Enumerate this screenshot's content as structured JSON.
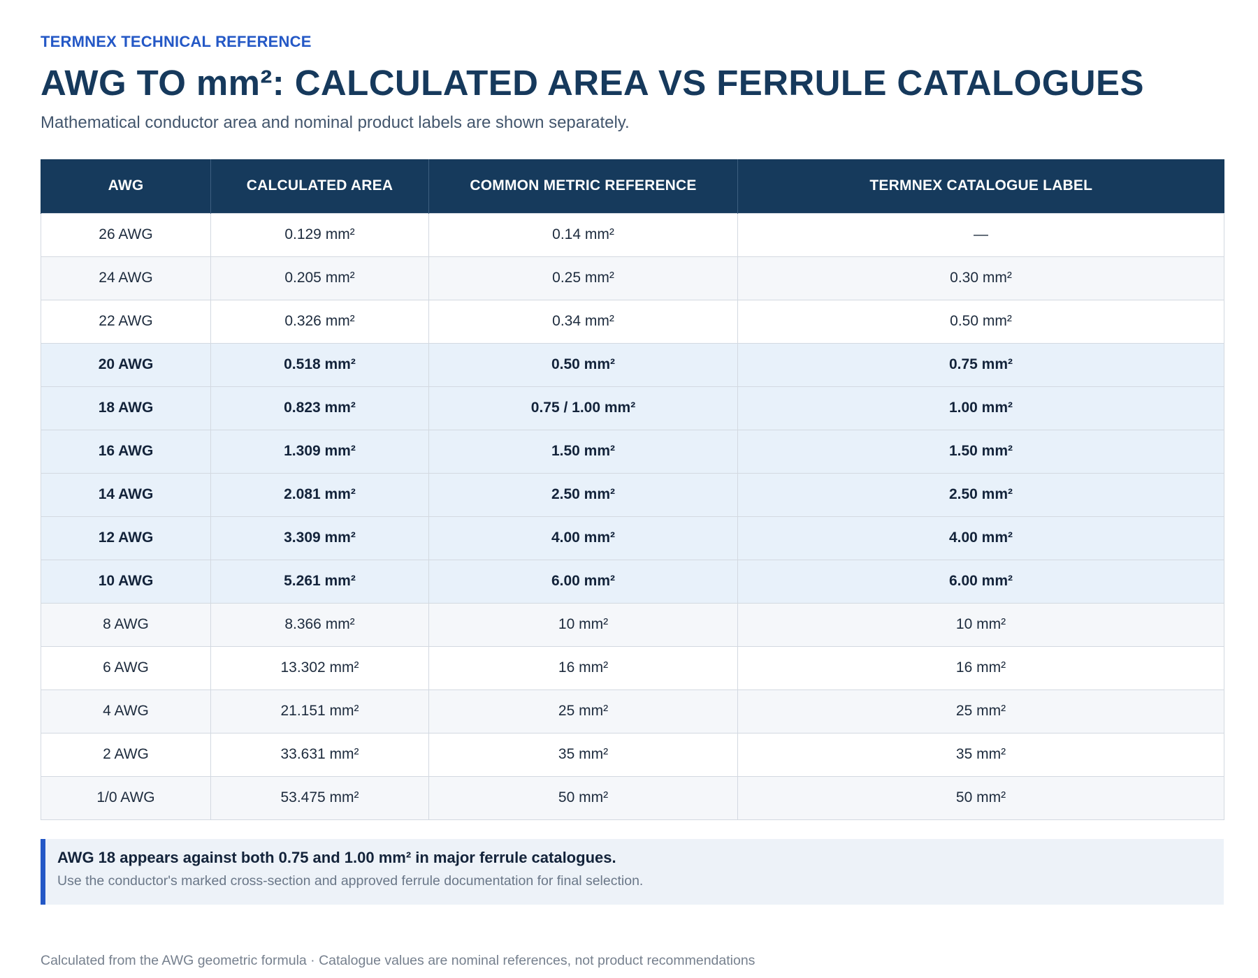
{
  "header": {
    "eyebrow": "TERMNEX TECHNICAL REFERENCE",
    "title": "AWG TO mm²: CALCULATED AREA VS FERRULE CATALOGUES",
    "subtitle": "Mathematical conductor area and nominal product labels are shown separately."
  },
  "table": {
    "columns": [
      "AWG",
      "CALCULATED AREA",
      "COMMON METRIC REFERENCE",
      "TERMNEX CATALOGUE LABEL"
    ],
    "rows": [
      {
        "awg": "26 AWG",
        "calculated": "0.129 mm²",
        "metric": "0.14 mm²",
        "catalogue": "—",
        "highlight": false
      },
      {
        "awg": "24 AWG",
        "calculated": "0.205 mm²",
        "metric": "0.25 mm²",
        "catalogue": "0.30 mm²",
        "highlight": false
      },
      {
        "awg": "22 AWG",
        "calculated": "0.326 mm²",
        "metric": "0.34 mm²",
        "catalogue": "0.50 mm²",
        "highlight": false
      },
      {
        "awg": "20 AWG",
        "calculated": "0.518 mm²",
        "metric": "0.50 mm²",
        "catalogue": "0.75 mm²",
        "highlight": true
      },
      {
        "awg": "18 AWG",
        "calculated": "0.823 mm²",
        "metric": "0.75 / 1.00 mm²",
        "catalogue": "1.00 mm²",
        "highlight": true
      },
      {
        "awg": "16 AWG",
        "calculated": "1.309 mm²",
        "metric": "1.50 mm²",
        "catalogue": "1.50 mm²",
        "highlight": true
      },
      {
        "awg": "14 AWG",
        "calculated": "2.081 mm²",
        "metric": "2.50 mm²",
        "catalogue": "2.50 mm²",
        "highlight": true
      },
      {
        "awg": "12 AWG",
        "calculated": "3.309 mm²",
        "metric": "4.00 mm²",
        "catalogue": "4.00 mm²",
        "highlight": true
      },
      {
        "awg": "10 AWG",
        "calculated": "5.261 mm²",
        "metric": "6.00 mm²",
        "catalogue": "6.00 mm²",
        "highlight": true
      },
      {
        "awg": "8 AWG",
        "calculated": "8.366 mm²",
        "metric": "10 mm²",
        "catalogue": "10 mm²",
        "highlight": false
      },
      {
        "awg": "6 AWG",
        "calculated": "13.302 mm²",
        "metric": "16 mm²",
        "catalogue": "16 mm²",
        "highlight": false
      },
      {
        "awg": "4 AWG",
        "calculated": "21.151 mm²",
        "metric": "25 mm²",
        "catalogue": "25 mm²",
        "highlight": false
      },
      {
        "awg": "2 AWG",
        "calculated": "33.631 mm²",
        "metric": "35 mm²",
        "catalogue": "35 mm²",
        "highlight": false
      },
      {
        "awg": "1/0 AWG",
        "calculated": "53.475 mm²",
        "metric": "50 mm²",
        "catalogue": "50 mm²",
        "highlight": false
      }
    ]
  },
  "note": {
    "heading": "AWG 18 appears against both 0.75 and 1.00 mm² in major ferrule catalogues.",
    "body": "Use the conductor's marked cross-section and approved ferrule documentation for final selection."
  },
  "footer": {
    "text": "Calculated from the AWG geometric formula · Catalogue values are nominal references, not product recommendations"
  },
  "colors": {
    "accent": "#2458c6",
    "header_bg": "#163a5c",
    "highlight_row": "#e8f1fa"
  }
}
